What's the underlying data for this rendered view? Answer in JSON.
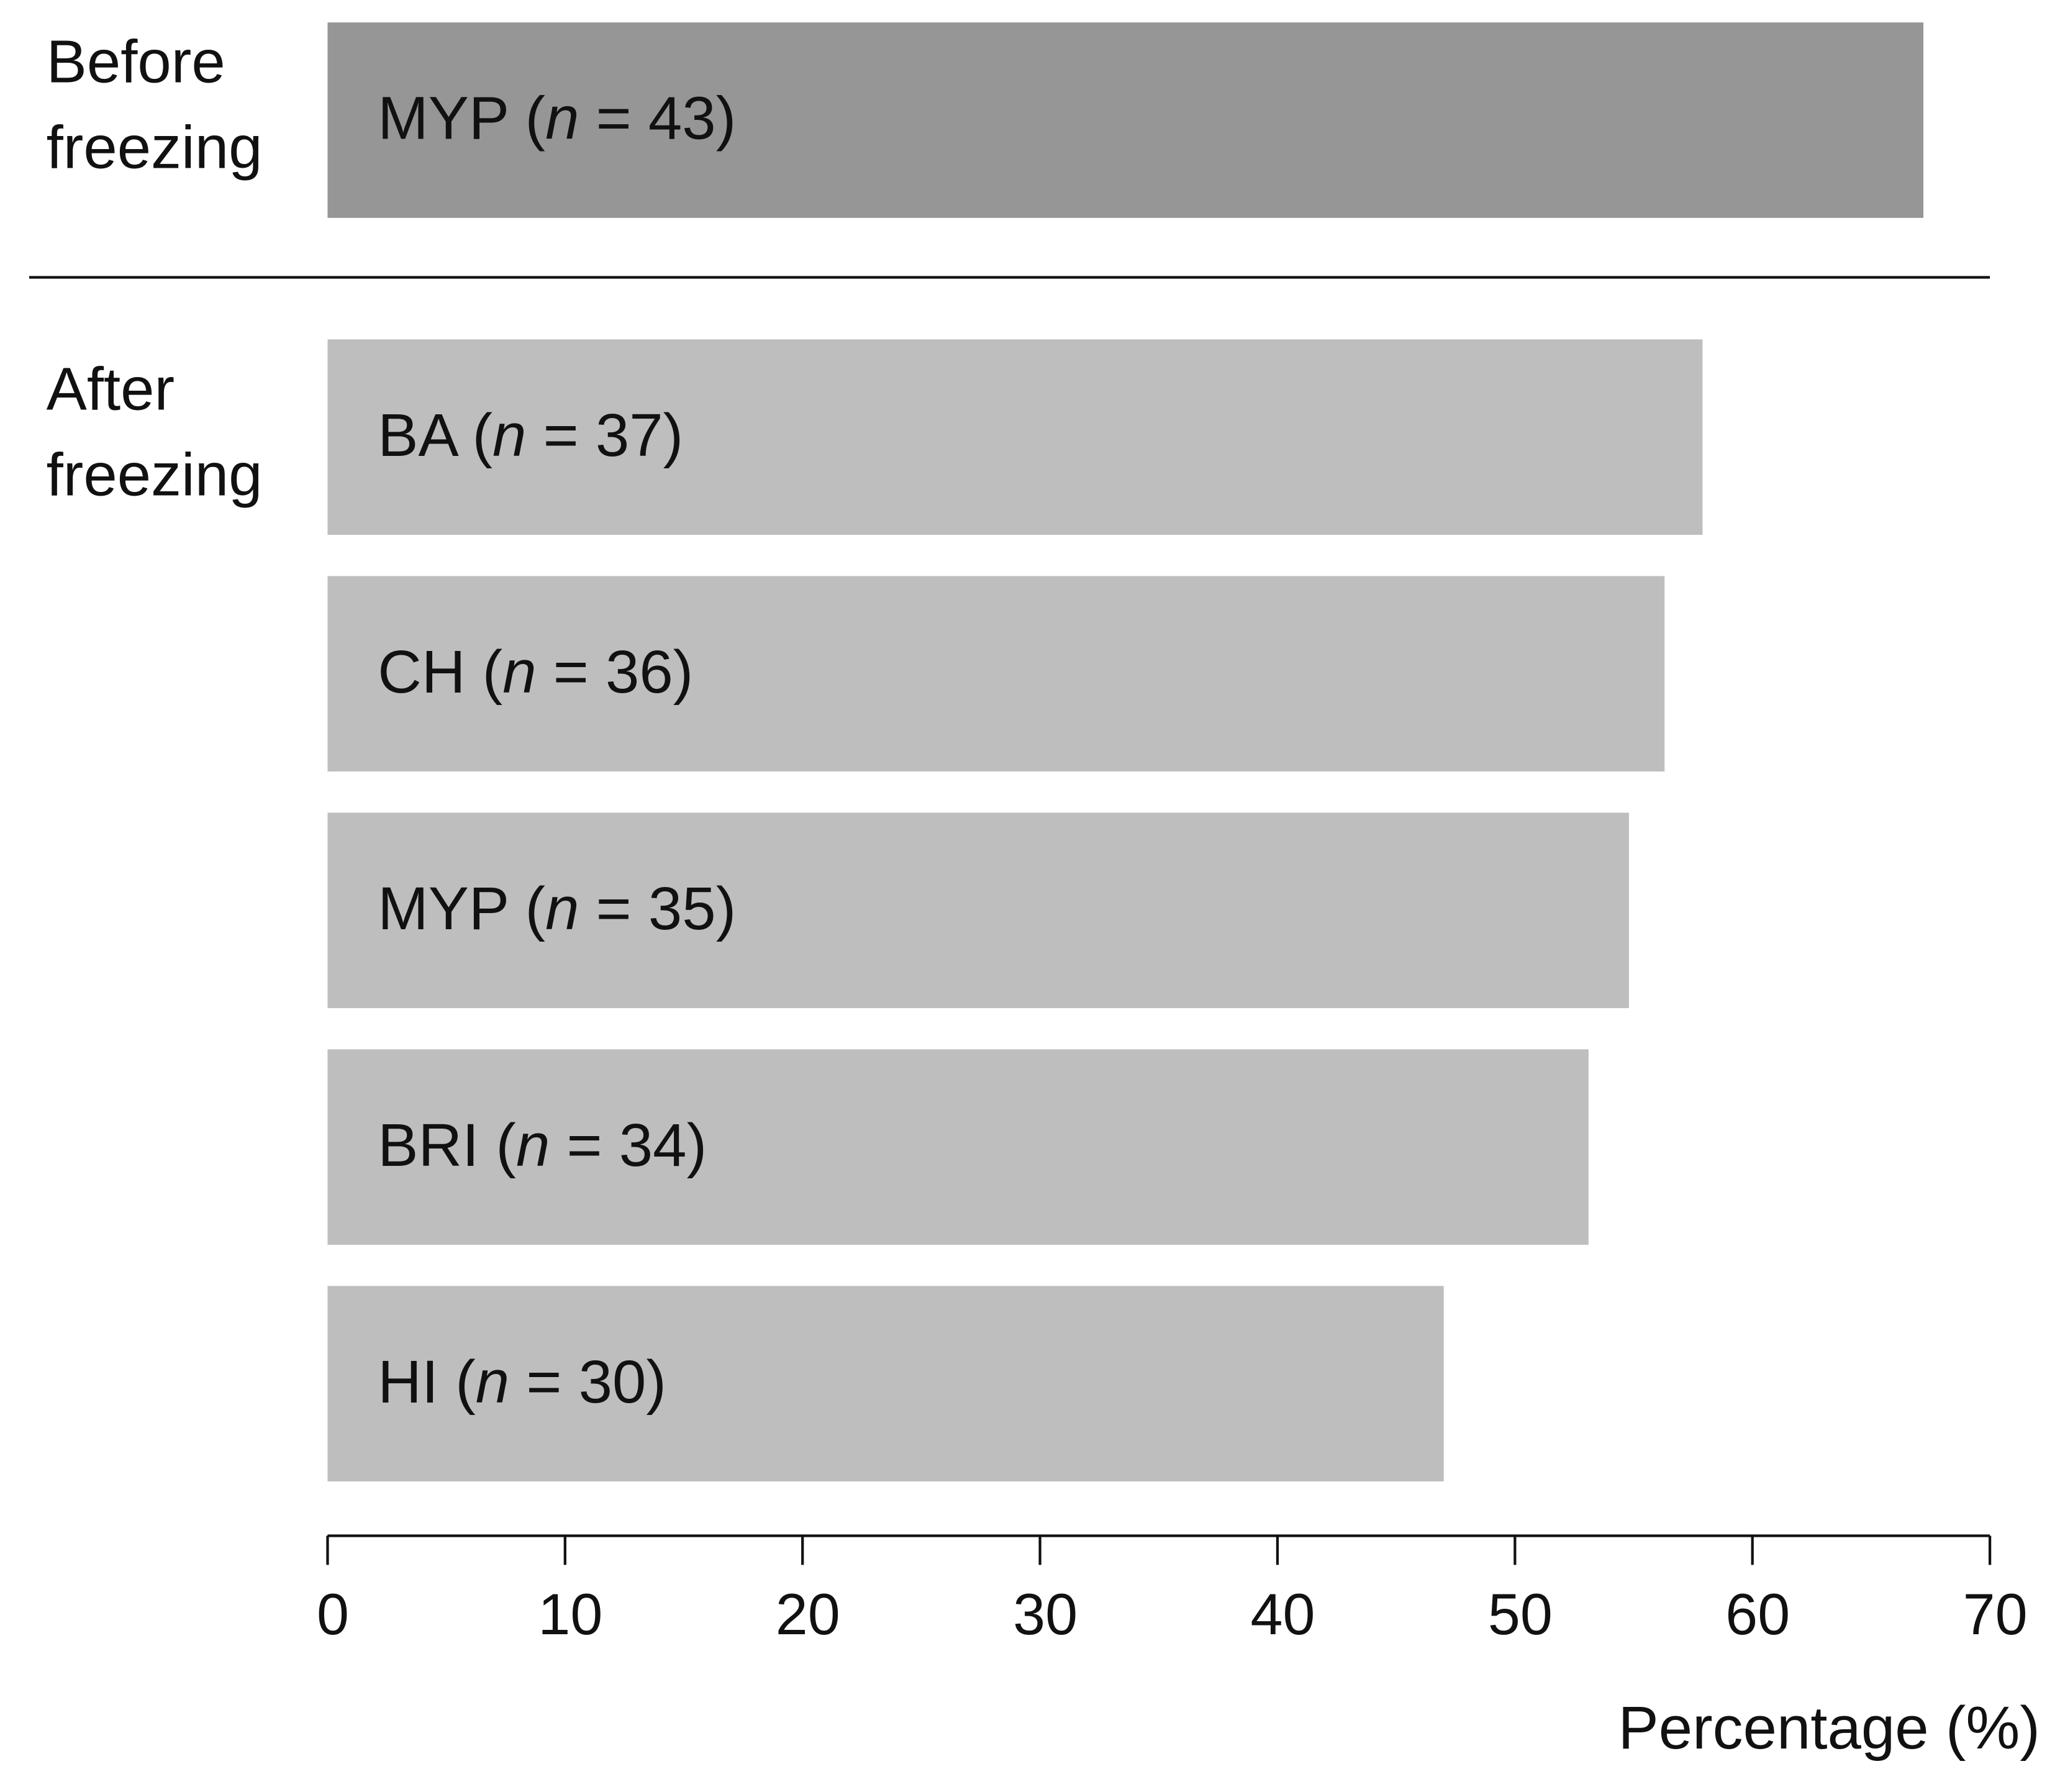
{
  "chart_data": {
    "type": "bar",
    "orientation": "horizontal",
    "groups": [
      {
        "name": "Before freezing",
        "color": "#969696",
        "categories": [
          "MYP (n = 43)"
        ],
        "values": [
          67.2
        ]
      },
      {
        "name": "After freezing",
        "color": "#bebebe",
        "categories": [
          "BA (n = 37)",
          "CH (n = 36)",
          "MYP (n = 35)",
          "BRI (n = 34)",
          "HI (n = 30)"
        ],
        "values": [
          57.9,
          56.3,
          54.8,
          53.1,
          47.0
        ]
      }
    ],
    "xlabel": "Percentage (%)",
    "xlim": [
      0,
      70
    ],
    "xticks": [
      0,
      10,
      20,
      30,
      40,
      50,
      60,
      70
    ]
  }
}
